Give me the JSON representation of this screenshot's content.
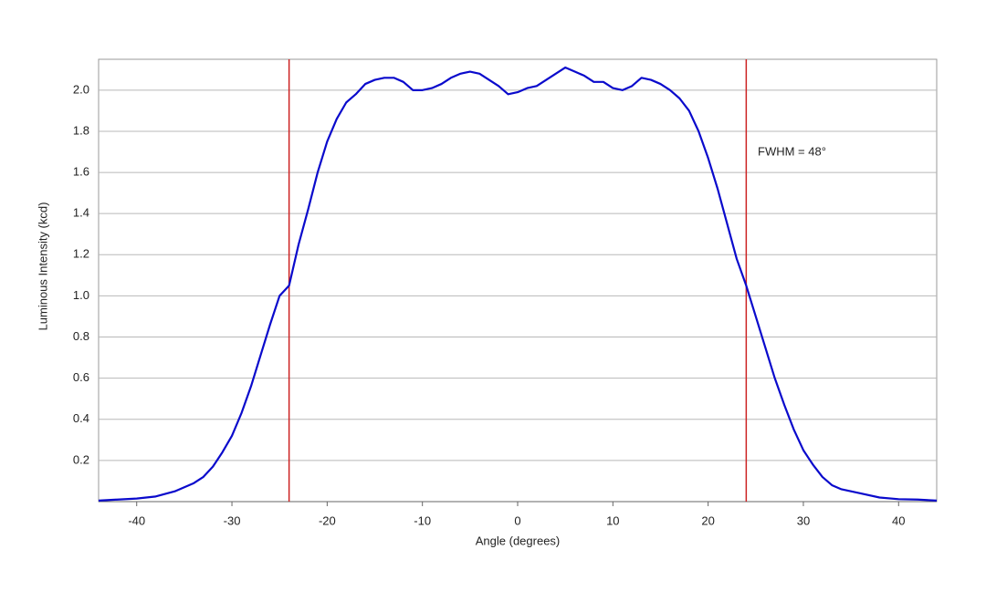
{
  "chart_data": {
    "type": "line",
    "x_label": "Angle (degrees)",
    "y_label": "Luminous Intensity (kcd)",
    "annotation": "FWHM = 48°",
    "x": [
      -44,
      -42,
      -40,
      -38,
      -36,
      -34,
      -33,
      -32,
      -31,
      -30,
      -29,
      -28,
      -27,
      -26,
      -25,
      -24,
      -23,
      -22,
      -21,
      -20,
      -19,
      -18,
      -17,
      -16,
      -15,
      -14,
      -13,
      -12,
      -11,
      -10,
      -9,
      -8,
      -7,
      -6,
      -5,
      -4,
      -3,
      -2,
      -1,
      0,
      1,
      2,
      3,
      4,
      5,
      6,
      7,
      8,
      9,
      10,
      11,
      12,
      13,
      14,
      15,
      16,
      17,
      18,
      19,
      20,
      21,
      22,
      23,
      24,
      25,
      26,
      27,
      28,
      29,
      30,
      31,
      32,
      33,
      34,
      36,
      38,
      40,
      42,
      44
    ],
    "series": [
      {
        "color": "#0a0acc",
        "values": [
          0.005,
          0.01,
          0.015,
          0.025,
          0.05,
          0.09,
          0.12,
          0.17,
          0.24,
          0.32,
          0.43,
          0.56,
          0.71,
          0.86,
          1.0,
          1.05,
          1.25,
          1.42,
          1.6,
          1.75,
          1.86,
          1.94,
          1.98,
          2.03,
          2.05,
          2.06,
          2.06,
          2.04,
          2.0,
          2.0,
          2.01,
          2.03,
          2.06,
          2.08,
          2.09,
          2.08,
          2.05,
          2.02,
          1.98,
          1.99,
          2.01,
          2.02,
          2.05,
          2.08,
          2.11,
          2.09,
          2.07,
          2.04,
          2.04,
          2.01,
          2.0,
          2.02,
          2.06,
          2.05,
          2.03,
          2.0,
          1.96,
          1.9,
          1.8,
          1.67,
          1.52,
          1.35,
          1.18,
          1.05,
          0.9,
          0.75,
          0.6,
          0.47,
          0.35,
          0.25,
          0.18,
          0.12,
          0.08,
          0.06,
          0.04,
          0.02,
          0.012,
          0.01,
          0.005
        ]
      }
    ],
    "vlines": [
      -24,
      24
    ],
    "vline_color": "#cc2222",
    "xlim": [
      -44,
      44
    ],
    "ylim": [
      0,
      2.15
    ],
    "xticks": [
      -40,
      -30,
      -20,
      -10,
      0,
      10,
      20,
      30,
      40
    ],
    "yticks": [
      0.2,
      0.4,
      0.6,
      0.8,
      {
        "value": 1.0,
        "label": "1.0"
      },
      1.2,
      1.4,
      1.6,
      1.8,
      {
        "value": 2.0,
        "label": "2.0"
      }
    ],
    "grid": true
  }
}
